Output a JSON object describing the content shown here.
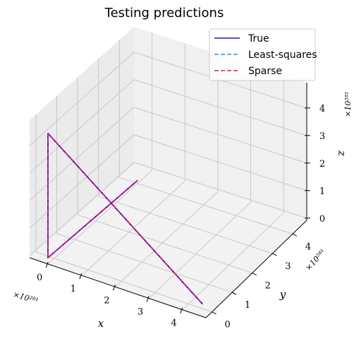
{
  "chart_data": {
    "type": "line",
    "title": "Testing predictions",
    "projection": "3d",
    "xlabel": "x",
    "ylabel": "y",
    "zlabel": "z",
    "x_ticks": [
      "0",
      "1",
      "2",
      "3",
      "4"
    ],
    "y_ticks": [
      "0",
      "1",
      "2",
      "3",
      "4"
    ],
    "z_ticks": [
      "0",
      "1",
      "2",
      "3",
      "4"
    ],
    "x_offset": "×10²⁸¹",
    "y_offset": "×10²⁸¹",
    "z_offset": "×10²⁸¹",
    "xlim": [
      0,
      4.7
    ],
    "ylim": [
      0,
      4.7
    ],
    "zlim": [
      0,
      4.7
    ],
    "legend_position": "top-right",
    "grid": true,
    "series": [
      {
        "name": "True",
        "color": "#1a1ab8",
        "dash": "solid",
        "x": [
          0,
          0,
          0,
          4.6
        ],
        "y": [
          4.6,
          0,
          0,
          0
        ],
        "z": [
          0,
          0,
          4.6,
          0
        ]
      },
      {
        "name": "Least-squares",
        "color": "#2196f3",
        "dash": "dashed",
        "x": [
          0,
          0,
          0,
          4.6
        ],
        "y": [
          4.6,
          0,
          0,
          0
        ],
        "z": [
          0,
          0,
          4.6,
          0
        ]
      },
      {
        "name": "Sparse",
        "color": "#e0157a",
        "dash": "dashed",
        "x": [
          0,
          0,
          0,
          4.6
        ],
        "y": [
          4.6,
          0,
          0,
          0
        ],
        "z": [
          0,
          0,
          4.6,
          0
        ]
      }
    ]
  }
}
